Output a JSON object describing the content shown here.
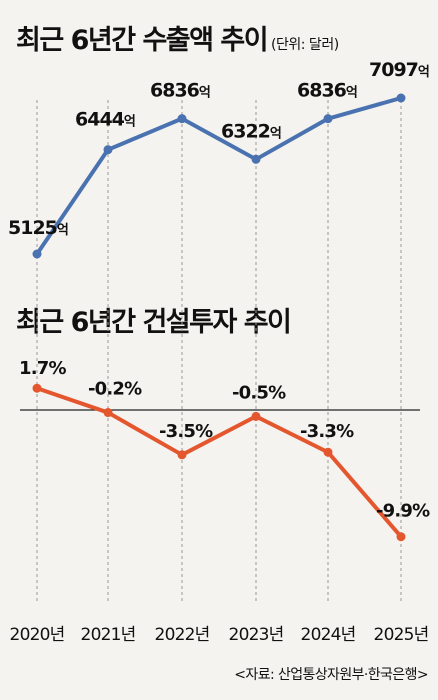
{
  "colors": {
    "export_line": "#4a72b0",
    "construction_line": "#e4572e",
    "background": "#f5f3ef",
    "text": "#111111"
  },
  "titles": {
    "export_title": "최근 6년간 수출액 추이",
    "export_unit": "(단위: 달러)",
    "construction_title": "최근 6년간 건설투자 추이"
  },
  "source": "<자료: 산업통상자원부·한국은행>",
  "chart_data": [
    {
      "type": "line",
      "title": "최근 6년간 수출액 추이",
      "unit": "(단위: 달러)",
      "categories": [
        "2020년",
        "2021년",
        "2022년",
        "2023년",
        "2024년",
        "2025년"
      ],
      "values": [
        5125,
        6444,
        6836,
        6322,
        6836,
        7097
      ],
      "data_labels": [
        "5125억",
        "6444억",
        "6836억",
        "6322억",
        "6836억",
        "7097억"
      ],
      "color": "#4a72b0",
      "grid": "vertical dashed"
    },
    {
      "type": "line",
      "title": "최근 6년간 건설투자 추이",
      "categories": [
        "2020년",
        "2021년",
        "2022년",
        "2023년",
        "2024년",
        "2025년"
      ],
      "values": [
        1.7,
        -0.2,
        -3.5,
        -0.5,
        -3.3,
        -9.9
      ],
      "data_labels": [
        "1.7%",
        "-0.2%",
        "-3.5%",
        "-0.5%",
        "-3.3%",
        "-9.9%"
      ],
      "color": "#e4572e",
      "baseline": 0,
      "grid": "vertical dashed"
    }
  ]
}
